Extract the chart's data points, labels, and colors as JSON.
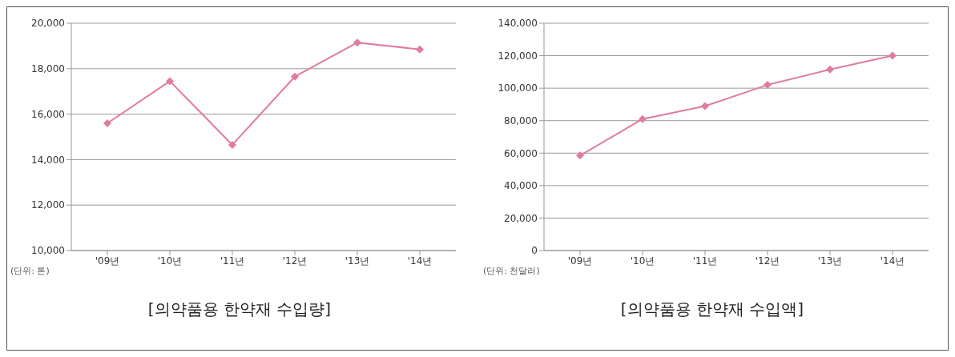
{
  "chart_data": [
    {
      "type": "line",
      "title": "[의약품용 한약재 수입량]",
      "categories": [
        "'09년",
        "'10년",
        "'11년",
        "'12년",
        "'13년",
        "'14년"
      ],
      "series": [
        {
          "color": "#e07ba0",
          "values": [
            15600,
            17450,
            14650,
            17650,
            19150,
            18850
          ]
        }
      ],
      "ylim": [
        10000,
        20000
      ],
      "yticks": [
        {
          "value": 10000,
          "label": "10,000"
        },
        {
          "value": 12000,
          "label": "12,000"
        },
        {
          "value": 14000,
          "label": "14,000"
        },
        {
          "value": 16000,
          "label": "16,000"
        },
        {
          "value": 18000,
          "label": "18,000"
        },
        {
          "value": 20000,
          "label": "20,000"
        }
      ],
      "grid": "y",
      "marker": "diamond",
      "annotations": [
        "(단위: 톤)"
      ]
    },
    {
      "type": "line",
      "title": "[의약품용 한약재 수입액]",
      "categories": [
        "'09년",
        "'10년",
        "'11년",
        "'12년",
        "'13년",
        "'14년"
      ],
      "series": [
        {
          "color": "#e07ba0",
          "values": [
            58500,
            81000,
            89000,
            102000,
            111500,
            120000
          ]
        }
      ],
      "ylim": [
        0,
        140000
      ],
      "yticks": [
        0,
        {
          "value": 20000,
          "label": "20,000"
        },
        {
          "value": 40000,
          "label": "40,000"
        },
        {
          "value": 60000,
          "label": "60,000"
        },
        {
          "value": 80000,
          "label": "80,000"
        },
        {
          "value": 100000,
          "label": "100,000"
        },
        {
          "value": 120000,
          "label": "120,000"
        },
        {
          "value": 140000,
          "label": "140,000"
        }
      ],
      "grid": "y",
      "marker": "diamond",
      "annotations": [
        "(단위: 천달러)"
      ]
    }
  ]
}
